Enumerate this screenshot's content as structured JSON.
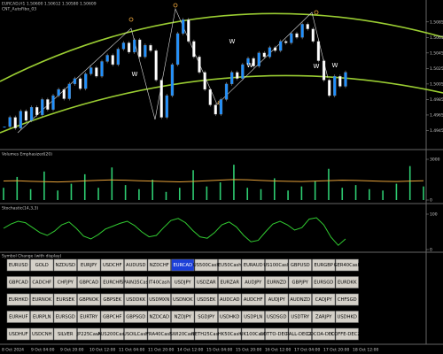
{
  "header": {
    "symbol_line": "EURCAD,H1  1.50600 1.50612 1.50580 1.50609",
    "indicator_line": "CNT_AutoFibo_03"
  },
  "chart_data": [
    {
      "type": "candlestick",
      "values": [
        1.495,
        1.4962,
        1.4948,
        1.497,
        1.4958,
        1.4975,
        1.4965,
        1.4985,
        1.4972,
        1.499,
        1.4998,
        1.4986,
        1.5005,
        1.5012,
        1.4999,
        1.5018,
        1.5026,
        1.5015,
        1.5034,
        1.5042,
        1.503,
        1.505,
        1.5058,
        1.5046,
        1.5062,
        1.504,
        1.5055,
        1.5048,
        1.501,
        1.4962,
        1.499,
        1.503,
        1.507,
        1.5088,
        1.506,
        1.504,
        1.502,
        1.4998,
        1.4978,
        1.4966,
        1.4985,
        1.5005,
        1.502,
        1.5012,
        1.503,
        1.5038,
        1.5028,
        1.5045,
        1.504,
        1.5052,
        1.5048,
        1.506,
        1.5058,
        1.507,
        1.5065,
        1.5082,
        1.5076,
        1.506,
        1.5035,
        1.501,
        1.499,
        1.5015,
        1.5002,
        1.502
      ],
      "colors": {
        "up": "#1e90ff",
        "down": "#ffffff"
      },
      "ylim": [
        1.4925,
        1.5095
      ],
      "yticks": [
        1.4945,
        1.4965,
        1.4985,
        1.5005,
        1.5025,
        1.5045,
        1.5065,
        1.5085
      ],
      "annotations": [
        "W",
        "W",
        "W",
        "W",
        "W"
      ]
    },
    {
      "type": "line",
      "title": "Volumes Emphasized(20)",
      "values": [
        1400,
        1420,
        1380,
        1350,
        1330,
        1360,
        1410,
        1450,
        1480,
        1460,
        1420,
        1390,
        1360,
        1340,
        1370,
        1420,
        1470,
        1510,
        1490,
        1440,
        1400,
        1380,
        1360,
        1390,
        1430,
        1460,
        1440,
        1410,
        1380,
        1360,
        1390,
        1420
      ],
      "color": "#e8a33a",
      "bars": [
        900,
        1700,
        800,
        2100,
        700,
        1200,
        1900,
        900,
        2400,
        1100,
        800,
        1500,
        600,
        900,
        2200,
        1000,
        1300,
        2600,
        900,
        800,
        1600,
        700,
        1000,
        1400,
        2300,
        900,
        1100,
        800,
        700,
        1200,
        2500,
        1000
      ],
      "bar_color": "#2ecc71",
      "ylim": [
        0,
        3000
      ],
      "yticks": [
        0,
        3000
      ]
    },
    {
      "type": "line",
      "title": "Stochastic(14,3,3)",
      "values": [
        60,
        72,
        80,
        76,
        62,
        48,
        40,
        52,
        70,
        78,
        60,
        38,
        30,
        42,
        58,
        66,
        74,
        80,
        68,
        50,
        36,
        40,
        62,
        82,
        88,
        76,
        54,
        36,
        32,
        48,
        70,
        78,
        64,
        40,
        22,
        26,
        50,
        72,
        80,
        70,
        55,
        62,
        86,
        90,
        70,
        35,
        12,
        30
      ],
      "color": "#32cd32",
      "ylim": [
        0,
        100
      ],
      "yticks": [
        0,
        100
      ]
    }
  ],
  "symbol_panel": {
    "title": "Symbol Change (with display)",
    "selected": [
      0,
      7
    ],
    "rows": [
      [
        "EURUSD",
        "GOLD",
        "NZDUSD",
        "EURJPY",
        "USDCHF",
        "AUDUSD",
        "NZDCHF",
        "EURCAD",
        "US500Cash",
        "EU50Cash",
        "EURAUD",
        "US100Cash",
        "GBPUSD",
        "EURGBP",
        "GER40Cash"
      ],
      [
        "GBPCAD",
        "CADCHF",
        "CHFJPY",
        "GBPCAD",
        "EURCHF",
        "SPAIN35Cash",
        "IT40Cash",
        "USDJPY",
        "USDZAR",
        "EURZAR",
        "AUDJPY",
        "EURNZD",
        "GBPJPY",
        "EURSGD",
        "EURDKK"
      ],
      [
        "EURHKD",
        "EURNOK",
        "EURSEK",
        "GBPNOK",
        "GBPSEK",
        "USDDKK",
        "USDMXN",
        "USDNOK",
        "USDSEK",
        "AUDCAD",
        "AUDCHF",
        "AUDJPY",
        "AUDNZD",
        "CADJPY",
        "CHFSGD"
      ],
      [
        "EURHUF",
        "EURPLN",
        "EURSGD",
        "EURTRY",
        "GBPCHF",
        "GBPSGD",
        "NZDCAD",
        "NZDJPY",
        "SGDJPY",
        "USDHKD",
        "USDPLN",
        "USDSGD",
        "USDTRY",
        "ZARJPY",
        "USDHKD"
      ],
      [
        "USDHUF",
        "USDCNH",
        "SILVER",
        "JP225Cash",
        "AUS200Cash",
        "USOILCash",
        "FRA40Cash",
        "SWI20Cash",
        "NETH25Cash",
        "HK50Cash",
        "UK100Cash",
        "COTTO-DEC24",
        "PALL-DEC24",
        "COCOA-DEC24",
        "COFFE-DEC24"
      ]
    ]
  },
  "time_axis": {
    "labels": [
      "8 Oct 2024",
      "9 Oct 04:00",
      "9 Oct 20:00",
      "10 Oct 12:00",
      "11 Oct 04:00",
      "11 Oct 20:00",
      "14 Oct 12:00",
      "15 Oct 04:00",
      "15 Oct 20:00",
      "16 Oct 12:00",
      "17 Oct 04:00",
      "17 Oct 20:00",
      "18 Oct 12:00"
    ]
  }
}
